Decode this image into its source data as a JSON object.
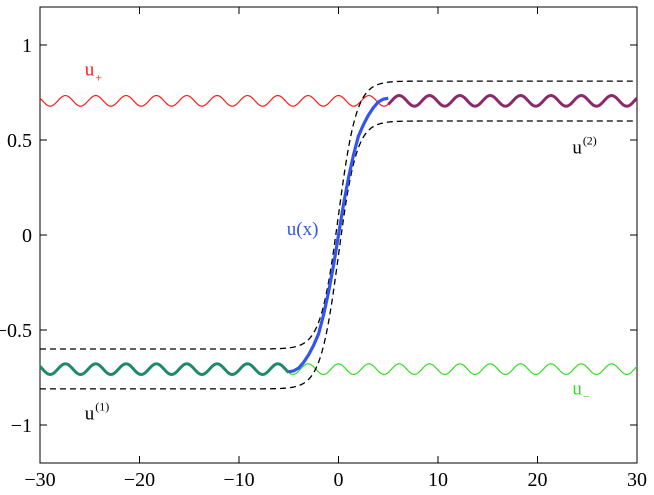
{
  "chart_data": {
    "type": "line",
    "title": "",
    "xlabel": "",
    "ylabel": "",
    "xlim": [
      -30,
      30
    ],
    "ylim": [
      -1.2,
      1.2
    ],
    "xticks": [
      -30,
      -20,
      -10,
      0,
      10,
      20,
      30
    ],
    "xtick_labels": [
      "−30",
      "−20",
      "−10",
      "0",
      "10",
      "20",
      "30"
    ],
    "yticks": [
      -1,
      -0.5,
      0,
      0.5,
      1
    ],
    "ytick_labels": [
      "−1",
      "−0.5",
      "0",
      "0.5",
      "1"
    ],
    "grid": false,
    "colors": {
      "u_plus": "#ff1a1a",
      "u_minus": "#33dd22",
      "u": "#3355ee",
      "overlay_right": "#8b2a6b",
      "overlay_left": "#1f8a6a",
      "bounds": "#000000"
    },
    "series": [
      {
        "key": "u_plus",
        "label": "u",
        "subscript": "+",
        "style": "solid",
        "mean": 0.706,
        "amplitude": 0.028,
        "period": 3.05,
        "x_range": [
          -30,
          30
        ]
      },
      {
        "key": "u_minus",
        "label": "u",
        "subscript": "−",
        "style": "solid",
        "mean": -0.706,
        "amplitude": 0.028,
        "period": 3.05,
        "x_range": [
          -30,
          30
        ]
      },
      {
        "key": "u",
        "label": "u(x)",
        "style": "solid-thick",
        "x": [
          -5,
          -4.5,
          -4,
          -3.5,
          -3,
          -2.5,
          -2,
          -1.5,
          -1,
          -0.5,
          0,
          0.5,
          1,
          1.5,
          2,
          2.5,
          3,
          3.5,
          4,
          4.5,
          5
        ],
        "y": [
          -0.72,
          -0.715,
          -0.7,
          -0.67,
          -0.63,
          -0.58,
          -0.52,
          -0.42,
          -0.3,
          -0.16,
          0.0,
          0.16,
          0.3,
          0.42,
          0.52,
          0.58,
          0.63,
          0.67,
          0.7,
          0.715,
          0.72
        ]
      },
      {
        "key": "overlay_right",
        "style": "solid-thick",
        "mean": 0.706,
        "amplitude": 0.028,
        "period": 3.05,
        "x_range": [
          5,
          30
        ]
      },
      {
        "key": "overlay_left",
        "style": "solid-thick",
        "mean": -0.706,
        "amplitude": 0.028,
        "period": 3.05,
        "x_range": [
          -30,
          -5
        ]
      },
      {
        "key": "upper_bound_high",
        "style": "dashed",
        "left": -0.6,
        "right": 0.81,
        "slope": 1.0
      },
      {
        "key": "upper_bound_low",
        "style": "dashed",
        "left": -0.81,
        "right": 0.6,
        "slope": 1.0
      }
    ],
    "annotations": [
      {
        "key": "u_plus",
        "text": "u",
        "sub": "+",
        "x": -25.5,
        "y": 0.84,
        "color": "#ff1a1a"
      },
      {
        "key": "u2",
        "text": "u",
        "sup": "(2)",
        "x": 23.5,
        "y": 0.43,
        "color": "#000000"
      },
      {
        "key": "ux",
        "text": "u(x)",
        "x": -5.2,
        "y": 0.0,
        "color": "#3355ee"
      },
      {
        "key": "u1",
        "text": "u",
        "sup": "(1)",
        "x": -25.5,
        "y": -0.97,
        "color": "#000000"
      },
      {
        "key": "u_minus",
        "text": "u",
        "sub": "−",
        "x": 23.5,
        "y": -0.84,
        "color": "#33dd22"
      }
    ]
  }
}
